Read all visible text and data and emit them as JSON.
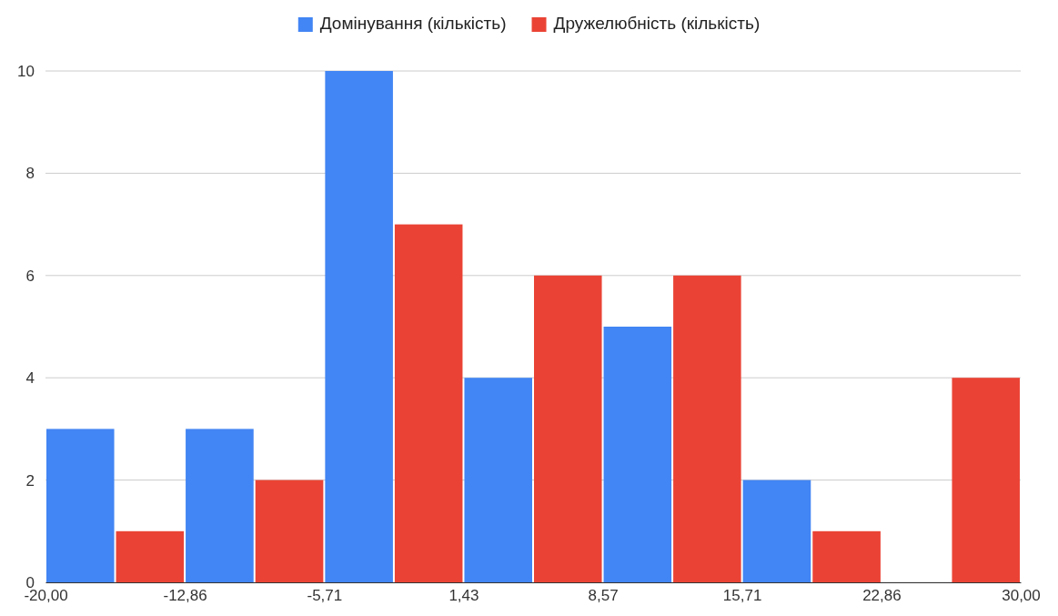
{
  "chart_data": {
    "type": "histogram",
    "bins": [
      -20,
      -12.86,
      -5.71,
      1.43,
      8.57,
      15.71,
      22.86,
      30
    ],
    "series": [
      {
        "name": "Домінування (кількість)",
        "color": "#4285f4",
        "values": [
          3,
          3,
          10,
          4,
          5,
          2,
          0
        ]
      },
      {
        "name": "Дружелюбність (кількість)",
        "color": "#ea4335",
        "values": [
          1,
          2,
          7,
          6,
          6,
          1,
          4
        ]
      }
    ],
    "xlim": [
      -20,
      30
    ],
    "xticks": [
      {
        "value": -20,
        "label": "-20,00"
      },
      {
        "value": -12.86,
        "label": "-12,86"
      },
      {
        "value": -5.71,
        "label": "-5,71"
      },
      {
        "value": 1.43,
        "label": "1,43"
      },
      {
        "value": 8.57,
        "label": "8,57"
      },
      {
        "value": 15.71,
        "label": "15,71"
      },
      {
        "value": 22.86,
        "label": "22,86"
      },
      {
        "value": 30,
        "label": "30,00"
      }
    ],
    "ylim": [
      0,
      10
    ],
    "yticks": [
      0,
      2,
      4,
      6,
      8,
      10
    ],
    "grid": "y",
    "legend": "top"
  }
}
